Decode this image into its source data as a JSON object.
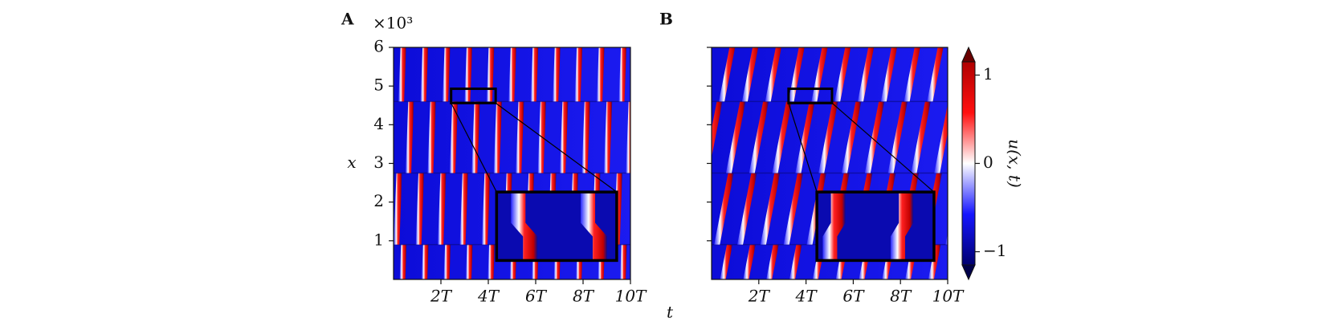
{
  "chart_data": [
    {
      "type": "heatmap",
      "panel_label": "A",
      "xlabel": "t",
      "ylabel": "x",
      "y_offset_label": "×10³",
      "xlim": [
        0,
        10
      ],
      "xticks": [
        {
          "value": 2,
          "label": "2T"
        },
        {
          "value": 4,
          "label": "4T"
        },
        {
          "value": 6,
          "label": "6T"
        },
        {
          "value": 8,
          "label": "8T"
        },
        {
          "value": 10,
          "label": "10T"
        }
      ],
      "ylim": [
        0,
        6
      ],
      "yticks": [
        1,
        2,
        3,
        4,
        5,
        6
      ]
    },
    {
      "type": "heatmap",
      "panel_label": "B",
      "xlim": [
        0,
        10
      ],
      "xticks": [
        {
          "value": 2,
          "label": "2T"
        },
        {
          "value": 4,
          "label": "4T"
        },
        {
          "value": 6,
          "label": "6T"
        },
        {
          "value": 8,
          "label": "8T"
        },
        {
          "value": 10,
          "label": "10T"
        }
      ],
      "ylim": [
        0,
        6
      ],
      "yticks": [
        1,
        2,
        3,
        4,
        5,
        6
      ]
    }
  ],
  "colorbar": {
    "label": "u(x, t)",
    "clim": [
      -1.15,
      1.15
    ],
    "ticks": [
      {
        "value": 1,
        "label": "1"
      },
      {
        "value": 0,
        "label": "0"
      },
      {
        "value": -1,
        "label": "−1"
      }
    ]
  }
}
